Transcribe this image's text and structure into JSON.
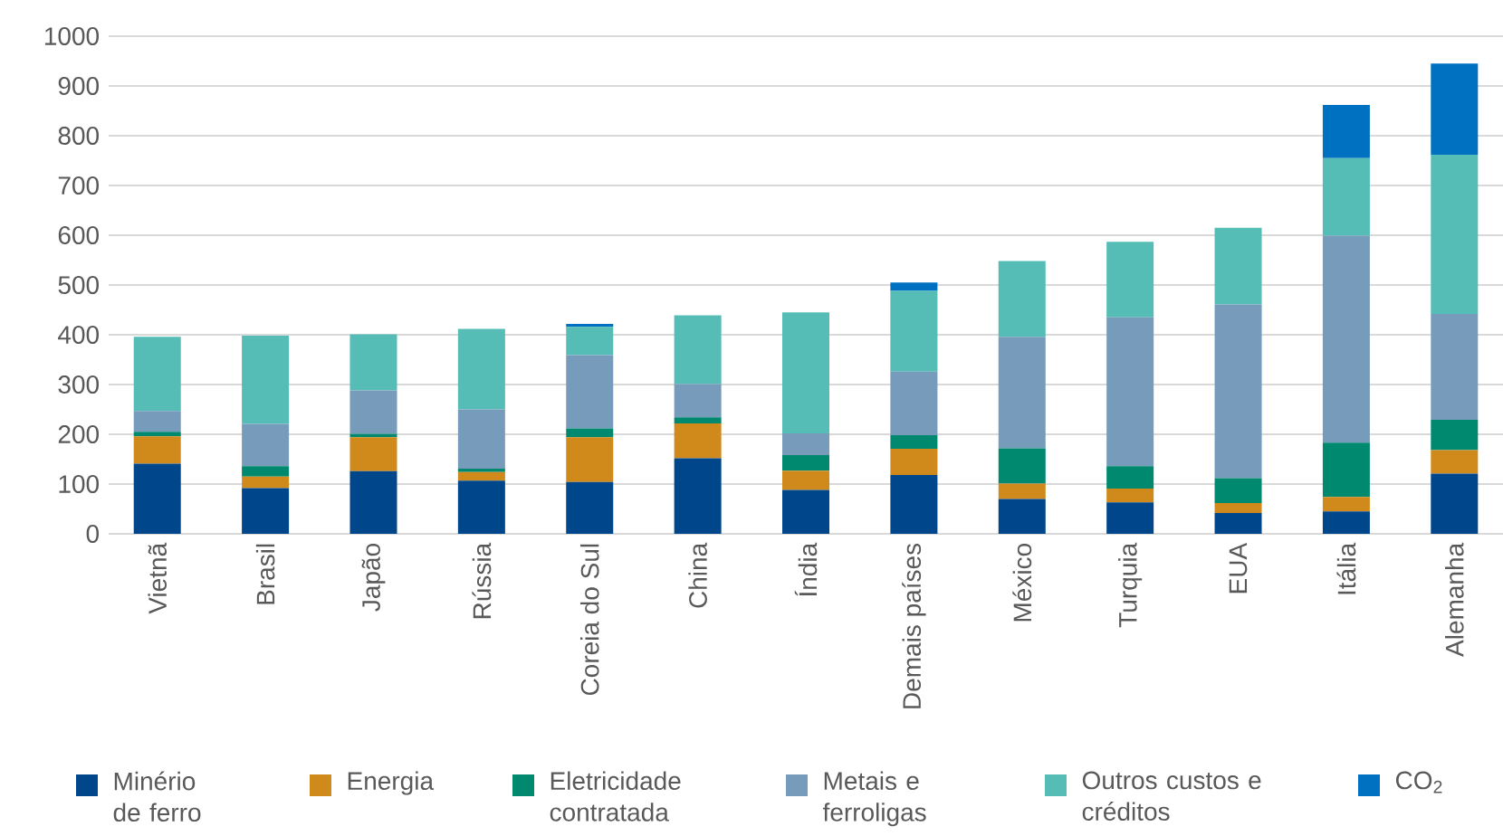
{
  "chart_data": {
    "type": "bar",
    "stacked": true,
    "categories": [
      "Vietnã",
      "Brasil",
      "Japão",
      "Rússia",
      "Coreia do Sul",
      "China",
      "Índia",
      "Demais países",
      "México",
      "Turquia",
      "EUA",
      "Itália",
      "Alemanha"
    ],
    "series": [
      {
        "name": "Minério de ferro",
        "color": "#00468b",
        "values": [
          141,
          92,
          126,
          107,
          104,
          152,
          88,
          118,
          70,
          63,
          42,
          45,
          121
        ]
      },
      {
        "name": "Energia",
        "color": "#d08a1c",
        "values": [
          55,
          23,
          68,
          17,
          90,
          70,
          39,
          53,
          31,
          28,
          20,
          29,
          47
        ]
      },
      {
        "name": "Eletricidade contratada",
        "color": "#00896f",
        "values": [
          9,
          21,
          7,
          7,
          18,
          12,
          31,
          27,
          71,
          45,
          50,
          109,
          61
        ]
      },
      {
        "name": "Metais e ferroligas",
        "color": "#779cbb",
        "values": [
          42,
          85,
          87,
          119,
          147,
          67,
          44,
          128,
          224,
          299,
          349,
          416,
          213
        ]
      },
      {
        "name": "Outros custos e créditos",
        "color": "#55bdb5",
        "values": [
          149,
          177,
          113,
          162,
          57,
          138,
          243,
          162,
          152,
          152,
          154,
          156,
          320
        ]
      },
      {
        "name": "CO$_{2}$",
        "color": "#0070c0",
        "values": [
          null,
          null,
          null,
          null,
          6,
          null,
          null,
          17,
          null,
          null,
          null,
          107,
          183
        ]
      }
    ],
    "ylim": [
      0,
      1000
    ],
    "yticks": [
      0,
      100,
      200,
      300,
      400,
      500,
      600,
      700,
      800,
      900,
      1000
    ],
    "grid": "y",
    "legend": "bottom"
  }
}
